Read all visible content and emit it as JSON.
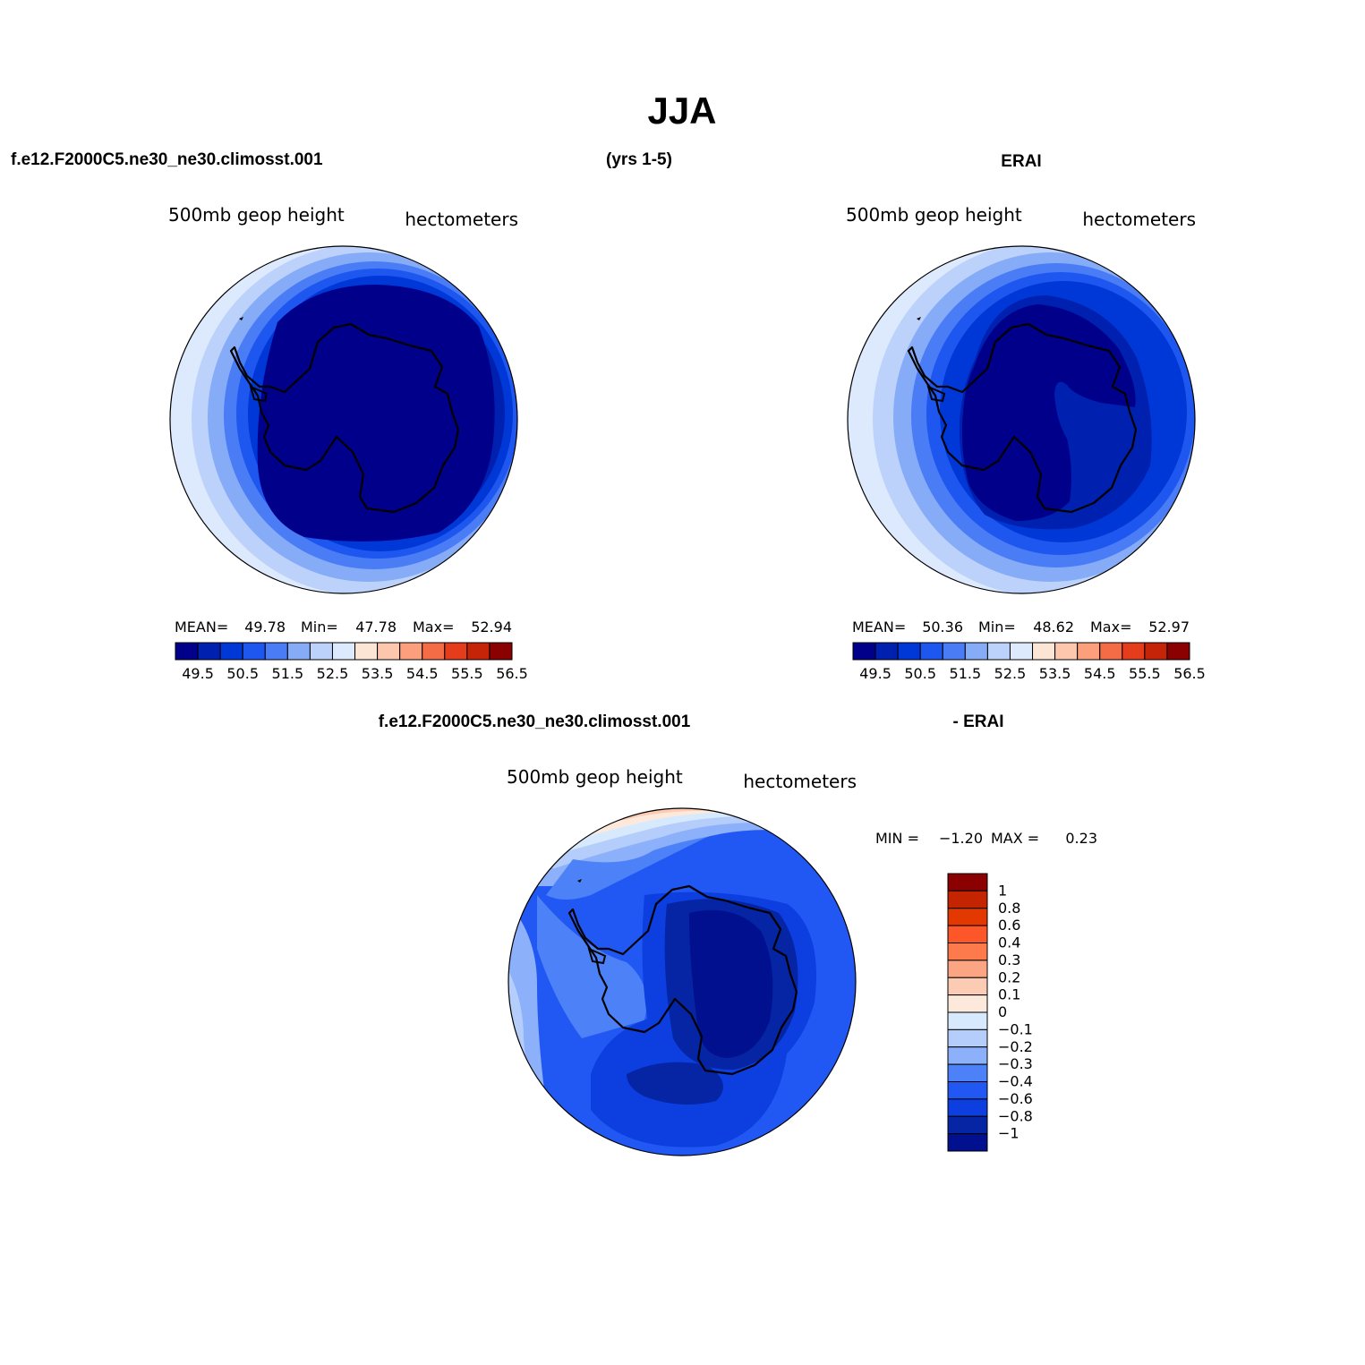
{
  "page": {
    "title": "JJA",
    "header_left": "f.e12.F2000C5.ne30_ne30.climosst.001",
    "header_mid": "(yrs 1-5)",
    "header_right": "ERAI",
    "diff_left": "f.e12.F2000C5.ne30_ne30.climosst.001",
    "diff_right": "- ERAI"
  },
  "panels": [
    {
      "id": "model",
      "left_label": "500mb geop height",
      "right_label": "hectometers",
      "stats": {
        "mean_label": "MEAN=",
        "mean": "49.78",
        "min_label": "Min=",
        "min": "47.78",
        "max_label": "Max=",
        "max": "52.94"
      }
    },
    {
      "id": "obs",
      "left_label": "500mb geop height",
      "right_label": "hectometers",
      "stats": {
        "mean_label": "MEAN=",
        "mean": "50.36",
        "min_label": "Min=",
        "min": "48.62",
        "max_label": "Max=",
        "max": "52.97"
      }
    },
    {
      "id": "diff",
      "left_label": "500mb geop height",
      "right_label": "hectometers",
      "stats": {
        "min_label": "MIN =",
        "min": "−1.20",
        "max_label": "MAX =",
        "max": "0.23"
      }
    }
  ],
  "colorbar_abs": {
    "colors": [
      "#00008b",
      "#0020b0",
      "#0038d8",
      "#1e56f0",
      "#4a7cf5",
      "#86acf8",
      "#bcd2fb",
      "#ddeafd",
      "#fde5d6",
      "#fcc7ad",
      "#fb9f7d",
      "#f46c45",
      "#e53d1b",
      "#c52408",
      "#8b0000"
    ],
    "labels": [
      "49.5",
      "50.5",
      "51.5",
      "52.5",
      "53.5",
      "54.5",
      "55.5",
      "56.5"
    ]
  },
  "colorbar_diff": {
    "colors_top_to_bottom": [
      "#8b0000",
      "#c42400",
      "#e33800",
      "#fd5629",
      "#fd7a4d",
      "#fca583",
      "#fccbb4",
      "#fde9dc",
      "#d7eafd",
      "#b5cdfb",
      "#8cb0fa",
      "#4d81f7",
      "#2158f3",
      "#0c3ee0",
      "#0525a5",
      "#00108e"
    ],
    "labels": [
      "1",
      "0.8",
      "0.6",
      "0.4",
      "0.3",
      "0.2",
      "0.1",
      "0",
      "−0.1",
      "−0.2",
      "−0.3",
      "−0.4",
      "−0.6",
      "−0.8",
      "−1"
    ]
  }
}
